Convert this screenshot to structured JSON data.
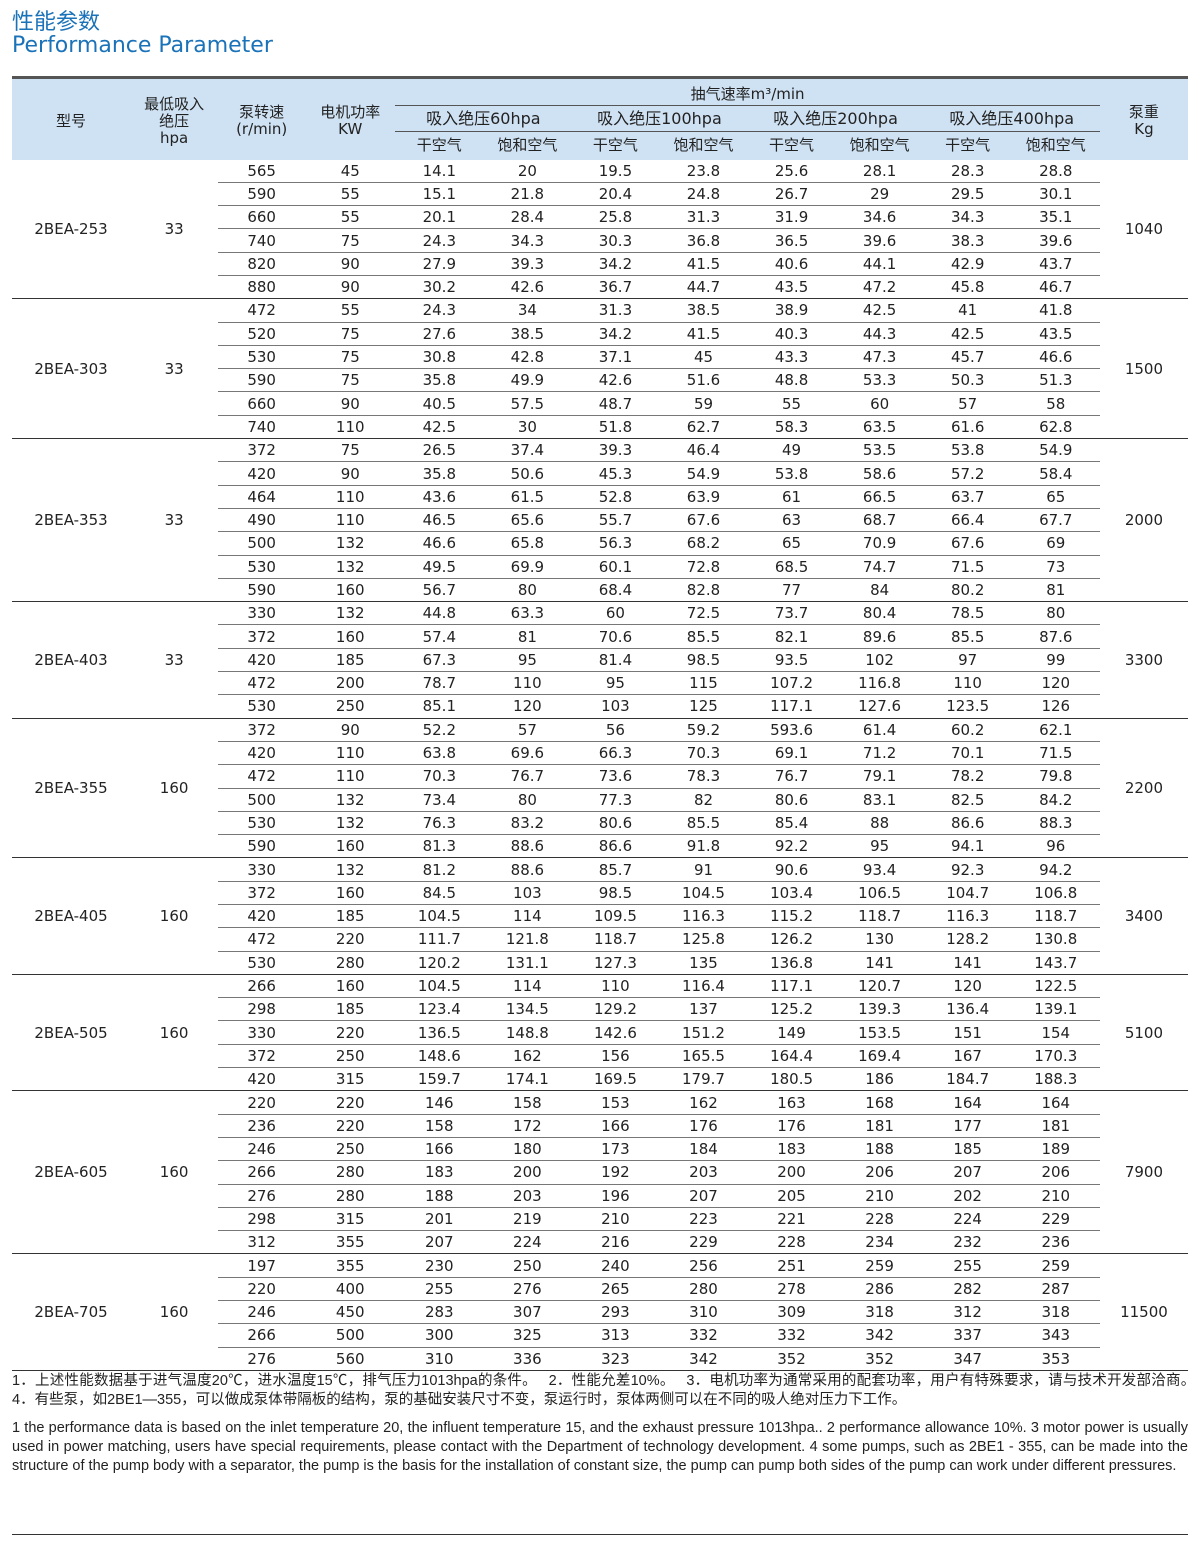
{
  "title_cn": "性能参数",
  "title_en": "Performance Parameter",
  "header": {
    "model": "型号",
    "min_pressure": [
      "最低吸入",
      "绝压",
      "hpa"
    ],
    "speed": [
      "泵转速",
      "(r/min)"
    ],
    "power": [
      "电机功率",
      "KW"
    ],
    "rate": "抽气速率m³/min",
    "pressures": [
      "吸入绝压60hpa",
      "吸入绝压100hpa",
      "吸入绝压200hpa",
      "吸入绝压400hpa"
    ],
    "dry": "干空气",
    "sat": "饱和空气",
    "weight": [
      "泵重",
      "Kg"
    ]
  },
  "groups": [
    {
      "model": "2BEA-253",
      "min": "33",
      "weight": "1040",
      "rows": [
        [
          "565",
          "45",
          "14.1",
          "20",
          "19.5",
          "23.8",
          "25.6",
          "28.1",
          "28.3",
          "28.8"
        ],
        [
          "590",
          "55",
          "15.1",
          "21.8",
          "20.4",
          "24.8",
          "26.7",
          "29",
          "29.5",
          "30.1"
        ],
        [
          "660",
          "55",
          "20.1",
          "28.4",
          "25.8",
          "31.3",
          "31.9",
          "34.6",
          "34.3",
          "35.1"
        ],
        [
          "740",
          "75",
          "24.3",
          "34.3",
          "30.3",
          "36.8",
          "36.5",
          "39.6",
          "38.3",
          "39.6"
        ],
        [
          "820",
          "90",
          "27.9",
          "39.3",
          "34.2",
          "41.5",
          "40.6",
          "44.1",
          "42.9",
          "43.7"
        ],
        [
          "880",
          "90",
          "30.2",
          "42.6",
          "36.7",
          "44.7",
          "43.5",
          "47.2",
          "45.8",
          "46.7"
        ]
      ]
    },
    {
      "model": "2BEA-303",
      "min": "33",
      "weight": "1500",
      "rows": [
        [
          "472",
          "55",
          "24.3",
          "34",
          "31.3",
          "38.5",
          "38.9",
          "42.5",
          "41",
          "41.8"
        ],
        [
          "520",
          "75",
          "27.6",
          "38.5",
          "34.2",
          "41.5",
          "40.3",
          "44.3",
          "42.5",
          "43.5"
        ],
        [
          "530",
          "75",
          "30.8",
          "42.8",
          "37.1",
          "45",
          "43.3",
          "47.3",
          "45.7",
          "46.6"
        ],
        [
          "590",
          "75",
          "35.8",
          "49.9",
          "42.6",
          "51.6",
          "48.8",
          "53.3",
          "50.3",
          "51.3"
        ],
        [
          "660",
          "90",
          "40.5",
          "57.5",
          "48.7",
          "59",
          "55",
          "60",
          "57",
          "58"
        ],
        [
          "740",
          "110",
          "42.5",
          "30",
          "51.8",
          "62.7",
          "58.3",
          "63.5",
          "61.6",
          "62.8"
        ]
      ]
    },
    {
      "model": "2BEA-353",
      "min": "33",
      "weight": "2000",
      "rows": [
        [
          "372",
          "75",
          "26.5",
          "37.4",
          "39.3",
          "46.4",
          "49",
          "53.5",
          "53.8",
          "54.9"
        ],
        [
          "420",
          "90",
          "35.8",
          "50.6",
          "45.3",
          "54.9",
          "53.8",
          "58.6",
          "57.2",
          "58.4"
        ],
        [
          "464",
          "110",
          "43.6",
          "61.5",
          "52.8",
          "63.9",
          "61",
          "66.5",
          "63.7",
          "65"
        ],
        [
          "490",
          "110",
          "46.5",
          "65.6",
          "55.7",
          "67.6",
          "63",
          "68.7",
          "66.4",
          "67.7"
        ],
        [
          "500",
          "132",
          "46.6",
          "65.8",
          "56.3",
          "68.2",
          "65",
          "70.9",
          "67.6",
          "69"
        ],
        [
          "530",
          "132",
          "49.5",
          "69.9",
          "60.1",
          "72.8",
          "68.5",
          "74.7",
          "71.5",
          "73"
        ],
        [
          "590",
          "160",
          "56.7",
          "80",
          "68.4",
          "82.8",
          "77",
          "84",
          "80.2",
          "81"
        ]
      ]
    },
    {
      "model": "2BEA-403",
      "min": "33",
      "weight": "3300",
      "rows": [
        [
          "330",
          "132",
          "44.8",
          "63.3",
          "60",
          "72.5",
          "73.7",
          "80.4",
          "78.5",
          "80"
        ],
        [
          "372",
          "160",
          "57.4",
          "81",
          "70.6",
          "85.5",
          "82.1",
          "89.6",
          "85.5",
          "87.6"
        ],
        [
          "420",
          "185",
          "67.3",
          "95",
          "81.4",
          "98.5",
          "93.5",
          "102",
          "97",
          "99"
        ],
        [
          "472",
          "200",
          "78.7",
          "110",
          "95",
          "115",
          "107.2",
          "116.8",
          "110",
          "120"
        ],
        [
          "530",
          "250",
          "85.1",
          "120",
          "103",
          "125",
          "117.1",
          "127.6",
          "123.5",
          "126"
        ]
      ]
    },
    {
      "model": "2BEA-355",
      "min": "160",
      "weight": "2200",
      "rows": [
        [
          "372",
          "90",
          "52.2",
          "57",
          "56",
          "59.2",
          "593.6",
          "61.4",
          "60.2",
          "62.1"
        ],
        [
          "420",
          "110",
          "63.8",
          "69.6",
          "66.3",
          "70.3",
          "69.1",
          "71.2",
          "70.1",
          "71.5"
        ],
        [
          "472",
          "110",
          "70.3",
          "76.7",
          "73.6",
          "78.3",
          "76.7",
          "79.1",
          "78.2",
          "79.8"
        ],
        [
          "500",
          "132",
          "73.4",
          "80",
          "77.3",
          "82",
          "80.6",
          "83.1",
          "82.5",
          "84.2"
        ],
        [
          "530",
          "132",
          "76.3",
          "83.2",
          "80.6",
          "85.5",
          "85.4",
          "88",
          "86.6",
          "88.3"
        ],
        [
          "590",
          "160",
          "81.3",
          "88.6",
          "86.6",
          "91.8",
          "92.2",
          "95",
          "94.1",
          "96"
        ]
      ]
    },
    {
      "model": "2BEA-405",
      "min": "160",
      "weight": "3400",
      "rows": [
        [
          "330",
          "132",
          "81.2",
          "88.6",
          "85.7",
          "91",
          "90.6",
          "93.4",
          "92.3",
          "94.2"
        ],
        [
          "372",
          "160",
          "84.5",
          "103",
          "98.5",
          "104.5",
          "103.4",
          "106.5",
          "104.7",
          "106.8"
        ],
        [
          "420",
          "185",
          "104.5",
          "114",
          "109.5",
          "116.3",
          "115.2",
          "118.7",
          "116.3",
          "118.7"
        ],
        [
          "472",
          "220",
          "111.7",
          "121.8",
          "118.7",
          "125.8",
          "126.2",
          "130",
          "128.2",
          "130.8"
        ],
        [
          "530",
          "280",
          "120.2",
          "131.1",
          "127.3",
          "135",
          "136.8",
          "141",
          "141",
          "143.7"
        ]
      ]
    },
    {
      "model": "2BEA-505",
      "min": "160",
      "weight": "5100",
      "rows": [
        [
          "266",
          "160",
          "104.5",
          "114",
          "110",
          "116.4",
          "117.1",
          "120.7",
          "120",
          "122.5"
        ],
        [
          "298",
          "185",
          "123.4",
          "134.5",
          "129.2",
          "137",
          "125.2",
          "139.3",
          "136.4",
          "139.1"
        ],
        [
          "330",
          "220",
          "136.5",
          "148.8",
          "142.6",
          "151.2",
          "149",
          "153.5",
          "151",
          "154"
        ],
        [
          "372",
          "250",
          "148.6",
          "162",
          "156",
          "165.5",
          "164.4",
          "169.4",
          "167",
          "170.3"
        ],
        [
          "420",
          "315",
          "159.7",
          "174.1",
          "169.5",
          "179.7",
          "180.5",
          "186",
          "184.7",
          "188.3"
        ]
      ]
    },
    {
      "model": "2BEA-605",
      "min": "160",
      "weight": "7900",
      "rows": [
        [
          "220",
          "220",
          "146",
          "158",
          "153",
          "162",
          "163",
          "168",
          "164",
          "164"
        ],
        [
          "236",
          "220",
          "158",
          "172",
          "166",
          "176",
          "176",
          "181",
          "177",
          "181"
        ],
        [
          "246",
          "250",
          "166",
          "180",
          "173",
          "184",
          "183",
          "188",
          "185",
          "189"
        ],
        [
          "266",
          "280",
          "183",
          "200",
          "192",
          "203",
          "200",
          "206",
          "207",
          "206"
        ],
        [
          "276",
          "280",
          "188",
          "203",
          "196",
          "207",
          "205",
          "210",
          "202",
          "210"
        ],
        [
          "298",
          "315",
          "201",
          "219",
          "210",
          "223",
          "221",
          "228",
          "224",
          "229"
        ],
        [
          "312",
          "355",
          "207",
          "224",
          "216",
          "229",
          "228",
          "234",
          "232",
          "236"
        ]
      ]
    },
    {
      "model": "2BEA-705",
      "min": "160",
      "weight": "11500",
      "rows": [
        [
          "197",
          "355",
          "230",
          "250",
          "240",
          "256",
          "251",
          "259",
          "255",
          "259"
        ],
        [
          "220",
          "400",
          "255",
          "276",
          "265",
          "280",
          "278",
          "286",
          "282",
          "287"
        ],
        [
          "246",
          "450",
          "283",
          "307",
          "293",
          "310",
          "309",
          "318",
          "312",
          "318"
        ],
        [
          "266",
          "500",
          "300",
          "325",
          "313",
          "332",
          "332",
          "342",
          "337",
          "343"
        ],
        [
          "276",
          "560",
          "310",
          "336",
          "323",
          "342",
          "352",
          "352",
          "347",
          "353"
        ]
      ]
    }
  ],
  "notes": {
    "cn": "1．上述性能数据基于进气温度20℃，进水温度15℃，排气压力1013hpa的条件。　 2．性能允差10%。　 3．电机功率为通常采用的配套功率，用户有特殊要求，请与技术开发部洽商。　 4．有些泵，如2BE1—355，可以做成泵体带隔板的结构，泵的基础安装尺寸不变，泵运行时，泵体两侧可以在不同的吸人绝对压力下工作。",
    "en": "1 the performance data is based on the inlet temperature 20, the influent temperature 15, and the exhaust pressure 1013hpa.. 2 performance allowance 10%. 3 motor power is usually used in power matching, users have special requirements, please contact with the Department of technology development. 4 some pumps, such as 2BE1 - 355, can be made into the structure of the pump body with a separator, the pump is the basis for the installation of constant size, the pump can pump both sides of the pump can work under different pressures."
  }
}
